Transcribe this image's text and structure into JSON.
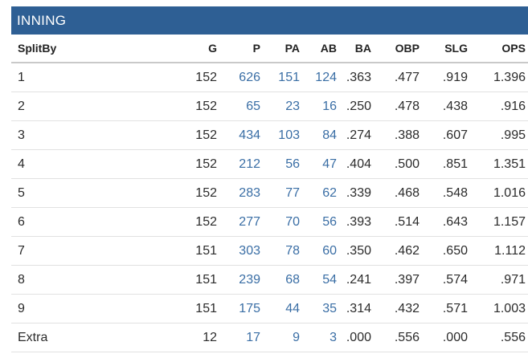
{
  "section": {
    "title": "INNING"
  },
  "columns": [
    "SplitBy",
    "G",
    "P",
    "PA",
    "AB",
    "BA",
    "OBP",
    "SLG",
    "OPS"
  ],
  "rows": [
    {
      "split": "1",
      "g": "152",
      "p": "626",
      "pa": "151",
      "ab": "124",
      "ba": ".363",
      "obp": ".477",
      "slg": ".919",
      "ops": "1.396"
    },
    {
      "split": "2",
      "g": "152",
      "p": "65",
      "pa": "23",
      "ab": "16",
      "ba": ".250",
      "obp": ".478",
      "slg": ".438",
      "ops": ".916"
    },
    {
      "split": "3",
      "g": "152",
      "p": "434",
      "pa": "103",
      "ab": "84",
      "ba": ".274",
      "obp": ".388",
      "slg": ".607",
      "ops": ".995"
    },
    {
      "split": "4",
      "g": "152",
      "p": "212",
      "pa": "56",
      "ab": "47",
      "ba": ".404",
      "obp": ".500",
      "slg": ".851",
      "ops": "1.351"
    },
    {
      "split": "5",
      "g": "152",
      "p": "283",
      "pa": "77",
      "ab": "62",
      "ba": ".339",
      "obp": ".468",
      "slg": ".548",
      "ops": "1.016"
    },
    {
      "split": "6",
      "g": "152",
      "p": "277",
      "pa": "70",
      "ab": "56",
      "ba": ".393",
      "obp": ".514",
      "slg": ".643",
      "ops": "1.157"
    },
    {
      "split": "7",
      "g": "151",
      "p": "303",
      "pa": "78",
      "ab": "60",
      "ba": ".350",
      "obp": ".462",
      "slg": ".650",
      "ops": "1.112"
    },
    {
      "split": "8",
      "g": "151",
      "p": "239",
      "pa": "68",
      "ab": "54",
      "ba": ".241",
      "obp": ".397",
      "slg": ".574",
      "ops": ".971"
    },
    {
      "split": "9",
      "g": "151",
      "p": "175",
      "pa": "44",
      "ab": "35",
      "ba": ".314",
      "obp": ".432",
      "slg": ".571",
      "ops": "1.003"
    },
    {
      "split": "Extra",
      "g": "12",
      "p": "17",
      "pa": "9",
      "ab": "3",
      "ba": ".000",
      "obp": ".556",
      "slg": ".000",
      "ops": ".556"
    }
  ],
  "colors": {
    "header_bg": "#2e5f94",
    "link": "#3a6ea5",
    "text": "#2b2b2b"
  }
}
